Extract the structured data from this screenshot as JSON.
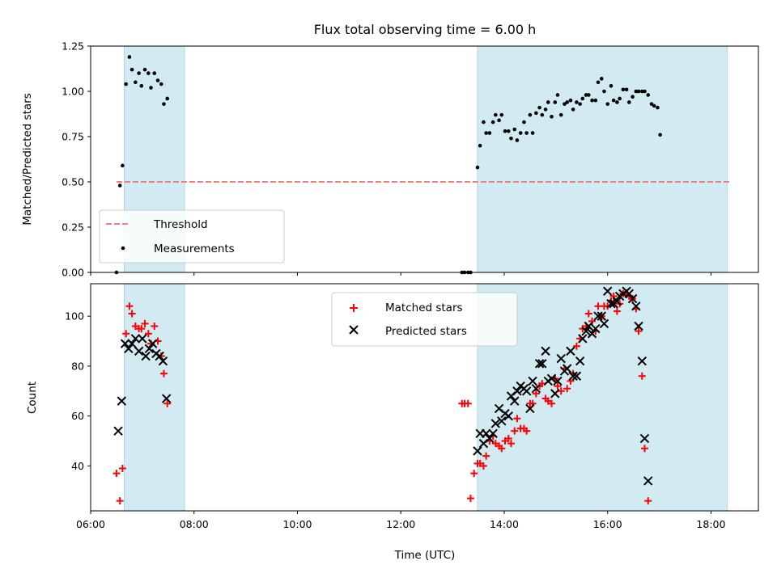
{
  "chart_data": {
    "title": "Flux total observing time = 6.00 h",
    "xlabel": "Time (UTC)",
    "xlim": [
      "06:00",
      "18:55"
    ],
    "x_ticks": [
      "06:00",
      "08:00",
      "10:00",
      "12:00",
      "14:00",
      "16:00",
      "18:00"
    ],
    "observing_windows": [
      [
        "06:39",
        "07:49"
      ],
      [
        "13:29",
        "18:19"
      ]
    ],
    "colors": {
      "window": "#add8e6",
      "threshold": "#f08080",
      "measurements": "#000000",
      "matched": "#ff0000",
      "predicted": "#000000"
    },
    "panels": [
      {
        "type": "scatter",
        "ylabel": "Matched/Predicted stars",
        "ylim": [
          0,
          1.25
        ],
        "y_ticks": [
          "0.00",
          "0.25",
          "0.50",
          "0.75",
          "1.00",
          "1.25"
        ],
        "threshold": 0.5,
        "threshold_range": [
          "06:30",
          "18:22"
        ],
        "legend": {
          "loc": "lower-left",
          "entries": [
            "Threshold",
            "Measurements"
          ]
        },
        "series": [
          {
            "name": "Measurements",
            "points": [
              [
                "06:30",
                0.0
              ],
              [
                "06:34",
                0.48
              ],
              [
                "06:37",
                0.59
              ],
              [
                "06:41",
                1.04
              ],
              [
                "06:45",
                1.19
              ],
              [
                "06:48",
                1.12
              ],
              [
                "06:52",
                1.05
              ],
              [
                "06:56",
                1.1
              ],
              [
                "06:59",
                1.03
              ],
              [
                "07:03",
                1.12
              ],
              [
                "07:07",
                1.1
              ],
              [
                "07:10",
                1.02
              ],
              [
                "07:14",
                1.1
              ],
              [
                "07:18",
                1.06
              ],
              [
                "07:22",
                1.04
              ],
              [
                "07:25",
                0.93
              ],
              [
                "07:29",
                0.96
              ],
              [
                "13:11",
                0.0
              ],
              [
                "13:14",
                0.0
              ],
              [
                "13:18",
                0.0
              ],
              [
                "13:21",
                0.0
              ],
              [
                "13:29",
                0.58
              ],
              [
                "13:32",
                0.7
              ],
              [
                "13:36",
                0.83
              ],
              [
                "13:39",
                0.77
              ],
              [
                "13:43",
                0.77
              ],
              [
                "13:47",
                0.83
              ],
              [
                "13:50",
                0.87
              ],
              [
                "13:54",
                0.84
              ],
              [
                "13:57",
                0.87
              ],
              [
                "14:01",
                0.78
              ],
              [
                "14:05",
                0.78
              ],
              [
                "14:08",
                0.74
              ],
              [
                "14:12",
                0.79
              ],
              [
                "14:15",
                0.73
              ],
              [
                "14:19",
                0.77
              ],
              [
                "14:23",
                0.83
              ],
              [
                "14:26",
                0.77
              ],
              [
                "14:30",
                0.87
              ],
              [
                "14:33",
                0.77
              ],
              [
                "14:37",
                0.88
              ],
              [
                "14:41",
                0.91
              ],
              [
                "14:44",
                0.87
              ],
              [
                "14:48",
                0.9
              ],
              [
                "14:51",
                0.94
              ],
              [
                "14:55",
                0.86
              ],
              [
                "14:59",
                0.94
              ],
              [
                "15:02",
                0.98
              ],
              [
                "15:06",
                0.87
              ],
              [
                "15:10",
                0.93
              ],
              [
                "15:13",
                0.94
              ],
              [
                "15:17",
                0.95
              ],
              [
                "15:20",
                0.9
              ],
              [
                "15:24",
                0.94
              ],
              [
                "15:28",
                0.93
              ],
              [
                "15:31",
                0.96
              ],
              [
                "15:35",
                0.98
              ],
              [
                "15:38",
                0.98
              ],
              [
                "15:42",
                0.95
              ],
              [
                "15:46",
                0.95
              ],
              [
                "15:49",
                1.05
              ],
              [
                "15:53",
                1.07
              ],
              [
                "15:56",
                1.0
              ],
              [
                "16:00",
                0.93
              ],
              [
                "16:04",
                1.03
              ],
              [
                "16:07",
                0.95
              ],
              [
                "16:11",
                0.94
              ],
              [
                "16:14",
                0.96
              ],
              [
                "16:18",
                1.01
              ],
              [
                "16:22",
                1.01
              ],
              [
                "16:25",
                0.94
              ],
              [
                "16:29",
                0.97
              ],
              [
                "16:33",
                1.0
              ],
              [
                "16:36",
                1.0
              ],
              [
                "16:40",
                1.0
              ],
              [
                "16:43",
                1.0
              ],
              [
                "16:47",
                0.98
              ],
              [
                "16:51",
                0.93
              ],
              [
                "16:54",
                0.92
              ],
              [
                "16:58",
                0.91
              ],
              [
                "17:01",
                0.76
              ]
            ]
          }
        ]
      },
      {
        "type": "scatter",
        "ylabel": "Count",
        "ylim": [
          22,
          113
        ],
        "y_ticks": [
          "40",
          "60",
          "80",
          "100"
        ],
        "legend": {
          "loc": "upper-center",
          "entries": [
            "Matched stars",
            "Predicted stars"
          ]
        },
        "series": [
          {
            "name": "Matched stars",
            "marker": "+",
            "points": [
              [
                "06:30",
                37
              ],
              [
                "06:34",
                26
              ],
              [
                "06:37",
                39
              ],
              [
                "06:41",
                93
              ],
              [
                "06:45",
                104
              ],
              [
                "06:48",
                101
              ],
              [
                "06:52",
                96
              ],
              [
                "06:56",
                95
              ],
              [
                "06:59",
                95
              ],
              [
                "07:03",
                97
              ],
              [
                "07:07",
                93
              ],
              [
                "07:10",
                89
              ],
              [
                "07:14",
                96
              ],
              [
                "07:18",
                90
              ],
              [
                "07:22",
                84
              ],
              [
                "07:25",
                77
              ],
              [
                "07:29",
                65
              ],
              [
                "13:11",
                65
              ],
              [
                "13:14",
                65
              ],
              [
                "13:18",
                65
              ],
              [
                "13:21",
                27
              ],
              [
                "13:25",
                37
              ],
              [
                "13:29",
                41
              ],
              [
                "13:32",
                41
              ],
              [
                "13:36",
                40
              ],
              [
                "13:39",
                44
              ],
              [
                "13:43",
                50
              ],
              [
                "13:47",
                52
              ],
              [
                "13:50",
                49
              ],
              [
                "13:54",
                48
              ],
              [
                "13:57",
                47
              ],
              [
                "14:01",
                50
              ],
              [
                "14:05",
                51
              ],
              [
                "14:08",
                49
              ],
              [
                "14:12",
                54
              ],
              [
                "14:15",
                59
              ],
              [
                "14:19",
                55
              ],
              [
                "14:23",
                55
              ],
              [
                "14:26",
                54
              ],
              [
                "14:30",
                65
              ],
              [
                "14:33",
                65
              ],
              [
                "14:37",
                69
              ],
              [
                "14:41",
                72
              ],
              [
                "14:44",
                73
              ],
              [
                "14:48",
                67
              ],
              [
                "14:51",
                66
              ],
              [
                "14:55",
                65
              ],
              [
                "14:59",
                75
              ],
              [
                "15:02",
                72
              ],
              [
                "15:06",
                70
              ],
              [
                "15:10",
                79
              ],
              [
                "15:13",
                71
              ],
              [
                "15:17",
                74
              ],
              [
                "15:20",
                77
              ],
              [
                "15:24",
                88
              ],
              [
                "15:28",
                91
              ],
              [
                "15:31",
                95
              ],
              [
                "15:35",
                96
              ],
              [
                "15:38",
                101
              ],
              [
                "15:42",
                98
              ],
              [
                "15:46",
                94
              ],
              [
                "15:49",
                104
              ],
              [
                "15:53",
                100
              ],
              [
                "15:56",
                104
              ],
              [
                "16:00",
                104
              ],
              [
                "16:04",
                106
              ],
              [
                "16:07",
                108
              ],
              [
                "16:11",
                102
              ],
              [
                "16:14",
                105
              ],
              [
                "16:18",
                109
              ],
              [
                "16:22",
                109
              ],
              [
                "16:25",
                108
              ],
              [
                "16:29",
                107
              ],
              [
                "16:33",
                103
              ],
              [
                "16:36",
                94
              ],
              [
                "16:40",
                76
              ],
              [
                "16:43",
                47
              ],
              [
                "16:47",
                26
              ]
            ]
          },
          {
            "name": "Predicted stars",
            "marker": "x",
            "points": [
              [
                "06:32",
                54
              ],
              [
                "06:36",
                66
              ],
              [
                "06:40",
                89
              ],
              [
                "06:44",
                87
              ],
              [
                "06:48",
                89
              ],
              [
                "06:52",
                91
              ],
              [
                "06:56",
                86
              ],
              [
                "07:00",
                91
              ],
              [
                "07:04",
                84
              ],
              [
                "07:08",
                87
              ],
              [
                "07:12",
                89
              ],
              [
                "07:16",
                85
              ],
              [
                "07:20",
                84
              ],
              [
                "07:24",
                82
              ],
              [
                "07:28",
                67
              ],
              [
                "13:29",
                46
              ],
              [
                "13:32",
                53
              ],
              [
                "13:36",
                49
              ],
              [
                "13:39",
                53
              ],
              [
                "13:43",
                51
              ],
              [
                "13:47",
                53
              ],
              [
                "13:50",
                57
              ],
              [
                "13:54",
                63
              ],
              [
                "13:57",
                58
              ],
              [
                "14:01",
                61
              ],
              [
                "14:05",
                60
              ],
              [
                "14:08",
                68
              ],
              [
                "14:12",
                66
              ],
              [
                "14:15",
                70
              ],
              [
                "14:19",
                72
              ],
              [
                "14:23",
                71
              ],
              [
                "14:26",
                70
              ],
              [
                "14:30",
                63
              ],
              [
                "14:33",
                74
              ],
              [
                "14:37",
                71
              ],
              [
                "14:41",
                81
              ],
              [
                "14:44",
                81
              ],
              [
                "14:48",
                86
              ],
              [
                "14:51",
                74
              ],
              [
                "14:55",
                75
              ],
              [
                "14:59",
                69
              ],
              [
                "15:02",
                74
              ],
              [
                "15:06",
                83
              ],
              [
                "15:10",
                78
              ],
              [
                "15:13",
                79
              ],
              [
                "15:17",
                86
              ],
              [
                "15:20",
                76
              ],
              [
                "15:24",
                76
              ],
              [
                "15:28",
                82
              ],
              [
                "15:31",
                91
              ],
              [
                "15:35",
                94
              ],
              [
                "15:38",
                96
              ],
              [
                "15:42",
                93
              ],
              [
                "15:46",
                95
              ],
              [
                "15:49",
                100
              ],
              [
                "15:53",
                100
              ],
              [
                "15:56",
                97
              ],
              [
                "16:00",
                110
              ],
              [
                "16:04",
                105
              ],
              [
                "16:07",
                105
              ],
              [
                "16:11",
                106
              ],
              [
                "16:14",
                108
              ],
              [
                "16:18",
                109
              ],
              [
                "16:22",
                110
              ],
              [
                "16:25",
                109
              ],
              [
                "16:29",
                107
              ],
              [
                "16:33",
                104
              ],
              [
                "16:36",
                96
              ],
              [
                "16:40",
                82
              ],
              [
                "16:43",
                51
              ],
              [
                "16:47",
                34
              ]
            ]
          }
        ]
      }
    ]
  }
}
